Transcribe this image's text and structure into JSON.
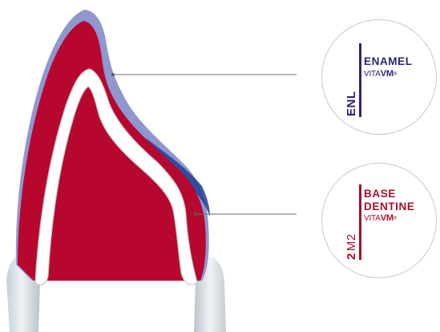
{
  "labels": {
    "enamel": {
      "title": "ENAMEL",
      "brand_prefix": "VITA",
      "brand_bold": "VM",
      "brand_mark": "®",
      "code": "ENL",
      "color": "#2a2577"
    },
    "base_dentine": {
      "title_line1": "BASE",
      "title_line2": "DENTINE",
      "brand_prefix": "VITA",
      "brand_bold": "VM",
      "brand_mark": "®",
      "code_number": "2",
      "code_shade": "M2",
      "color": "#a8102b"
    }
  },
  "layers": {
    "enamel_color": "#8f97cf",
    "enamel_edge_color": "#1f3f95",
    "base_dentine_color": "#b8072f",
    "core_outline_color": "#c8c8c8",
    "gingiva_color": "#d9e0e6"
  }
}
